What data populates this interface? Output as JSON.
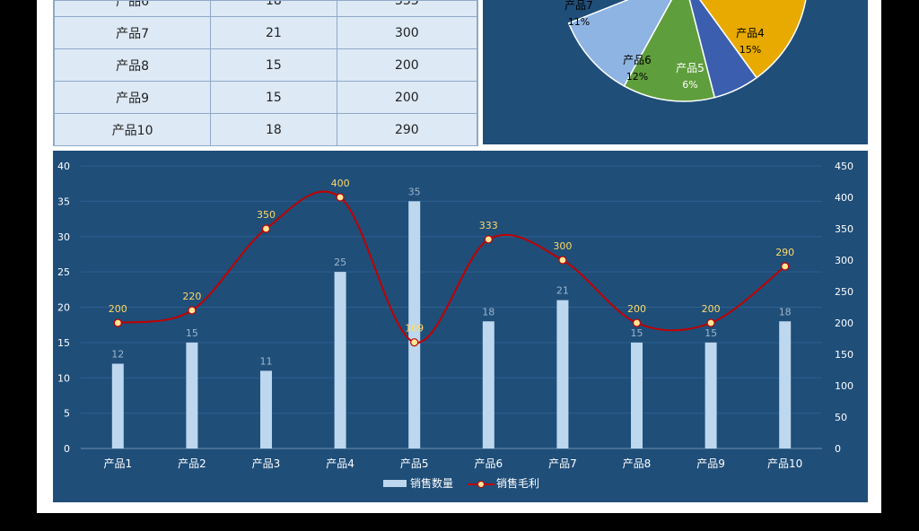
{
  "table": {
    "partial_row": [
      "产品6",
      "18",
      "333"
    ],
    "rows": [
      [
        "产品7",
        "21",
        "300"
      ],
      [
        "产品8",
        "15",
        "200"
      ],
      [
        "产品9",
        "15",
        "200"
      ],
      [
        "产品10",
        "18",
        "290"
      ]
    ]
  },
  "pie": {
    "slices": [
      {
        "label": "产品7",
        "pct": "11%",
        "color": "#8eb4e3"
      },
      {
        "label": "产品6",
        "pct": "12%",
        "color": "#5f9e3c"
      },
      {
        "label": "产品5",
        "pct": "6%",
        "color": "#3b5fae"
      },
      {
        "label": "产品4",
        "pct": "15%",
        "color": "#e8aa00"
      }
    ]
  },
  "colors": {
    "panel": "#1f4e79",
    "bar": "#bdd7ee",
    "line": "#c00000",
    "marker_fill": "#ffe699",
    "line_label": "#ffd966",
    "bar_label": "#9db5cc",
    "axis_text": "#ffffff"
  },
  "chart_data": {
    "type": "bar",
    "categories": [
      "产品1",
      "产品2",
      "产品3",
      "产品4",
      "产品5",
      "产品6",
      "产品7",
      "产品8",
      "产品9",
      "产品10"
    ],
    "series": [
      {
        "name": "销售数量",
        "type": "bar",
        "axis": "left",
        "values": [
          12,
          15,
          11,
          25,
          35,
          18,
          21,
          15,
          15,
          18
        ]
      },
      {
        "name": "销售毛利",
        "type": "line",
        "axis": "right",
        "smooth": true,
        "values": [
          200,
          220,
          350,
          400,
          169,
          333,
          300,
          200,
          200,
          290
        ]
      }
    ],
    "ylim": [
      0,
      40
    ],
    "yticks": [
      0,
      5,
      10,
      15,
      20,
      25,
      30,
      35,
      40
    ],
    "y2lim": [
      0,
      450
    ],
    "y2ticks": [
      0,
      50,
      100,
      150,
      200,
      250,
      300,
      350,
      400,
      450
    ],
    "grid": true,
    "legend": "bottom"
  }
}
